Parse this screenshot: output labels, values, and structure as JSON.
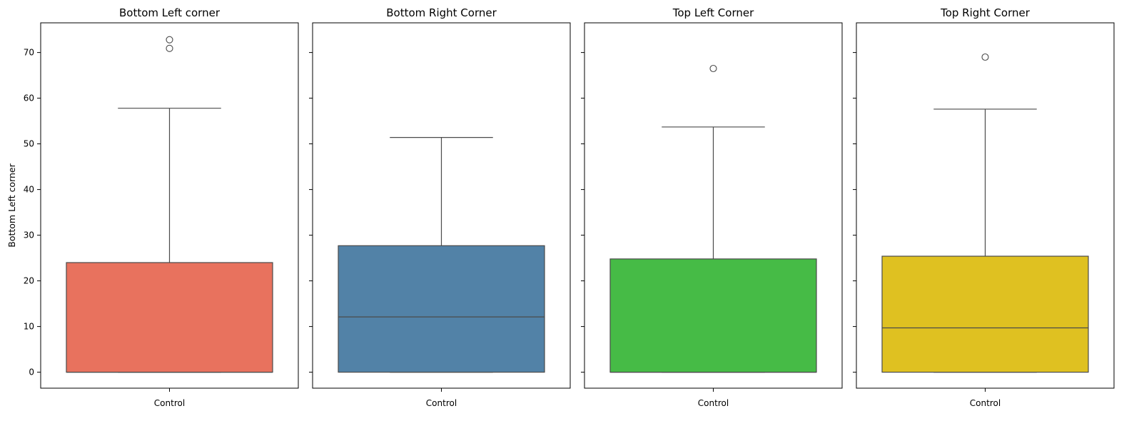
{
  "chart_data": {
    "type": "box",
    "ylabel": "Bottom Left corner",
    "ylim": [
      -3.5,
      76.5
    ],
    "yticks": [
      0,
      10,
      20,
      30,
      40,
      50,
      60,
      70
    ],
    "ytick_labels": [
      "0",
      "10",
      "20",
      "30",
      "40",
      "50",
      "60",
      "70"
    ],
    "grid": false,
    "shared_y": true,
    "panels": [
      {
        "title": "Bottom Left corner",
        "category": "Control",
        "color": "#E8725E",
        "whisker_low": 0,
        "q1": 0,
        "median": 0,
        "q3": 24.0,
        "whisker_high": 57.8,
        "outliers": [
          70.9,
          72.8
        ]
      },
      {
        "title": "Bottom Right Corner",
        "category": "Control",
        "color": "#5282A7",
        "whisker_low": 0,
        "q1": 0,
        "median": 12.1,
        "q3": 27.7,
        "whisker_high": 51.4,
        "outliers": []
      },
      {
        "title": "Top Left Corner",
        "category": "Control",
        "color": "#46BB46",
        "whisker_low": 0,
        "q1": 0,
        "median": 0,
        "q3": 24.8,
        "whisker_high": 53.7,
        "outliers": [
          66.5
        ]
      },
      {
        "title": "Top Right Corner",
        "category": "Control",
        "color": "#DFC121",
        "whisker_low": 0,
        "q1": 0,
        "median": 9.7,
        "q3": 25.4,
        "whisker_high": 57.6,
        "outliers": [
          69.0
        ]
      }
    ]
  }
}
